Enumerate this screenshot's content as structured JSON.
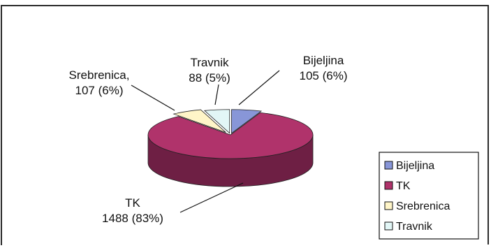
{
  "chart_data": {
    "type": "pie",
    "style": "3d-exploded",
    "categories": [
      "Bijeljina",
      "TK",
      "Srebrenica",
      "Travnik"
    ],
    "values": [
      105,
      1488,
      107,
      88
    ],
    "percents": [
      "6%",
      "83%",
      "6%",
      "5%"
    ],
    "data_labels": [
      [
        "Bijeljina",
        "105 (6%)"
      ],
      [
        "TK",
        "1488 (83%)"
      ],
      [
        "Srebrenica,",
        "107 (6%)"
      ],
      [
        "Travnik",
        "88  (5%)"
      ]
    ],
    "legend": {
      "position": "right",
      "entries": [
        "Bijeljina",
        "TK",
        "Srebrenica",
        "Travnik"
      ]
    },
    "colors": {
      "Bijeljina": "#8896d8",
      "TK": "#b0336b",
      "Srebrenica": "#fff5c8",
      "Travnik": "#e2f6f6"
    },
    "side_colors": {
      "Bijeljina": "#4a56a8",
      "TK": "#6e1f44",
      "Srebrenica": "#9a9468",
      "Travnik": "#8aa0a0"
    },
    "frame_color": "#2b2b2b"
  }
}
